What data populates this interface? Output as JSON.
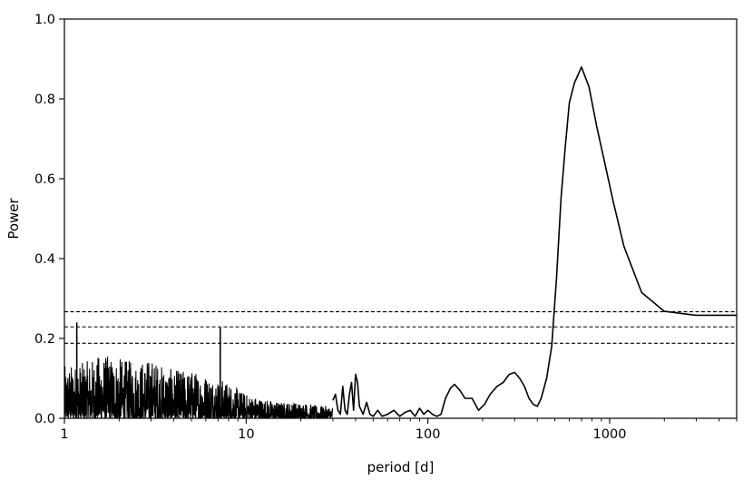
{
  "chart_data": {
    "type": "line",
    "title": "",
    "xlabel": "period [d]",
    "ylabel": "Power",
    "xscale": "log",
    "xlim": [
      1,
      5000
    ],
    "ylim": [
      0.0,
      1.0
    ],
    "x_ticks": [
      {
        "value": 1,
        "label": "1"
      },
      {
        "value": 10,
        "label": "10"
      },
      {
        "value": 100,
        "label": "100"
      },
      {
        "value": 1000,
        "label": "1000"
      }
    ],
    "y_ticks": [
      {
        "value": 0.0,
        "label": "0.0"
      },
      {
        "value": 0.2,
        "label": "0.2"
      },
      {
        "value": 0.4,
        "label": "0.4"
      },
      {
        "value": 0.6,
        "label": "0.6"
      },
      {
        "value": 0.8,
        "label": "0.8"
      },
      {
        "value": 1.0,
        "label": "1.0"
      }
    ],
    "grid": false,
    "legend": "none",
    "line_color": "#000000",
    "threshold_lines": [
      0.267,
      0.229,
      0.188
    ],
    "spikes": [
      {
        "x": 1.17,
        "y": 0.24
      },
      {
        "x": 7.2,
        "y": 0.227
      }
    ],
    "noise_region": {
      "x_range": [
        1.0,
        30.0
      ],
      "envelope": [
        [
          1.0,
          0.13
        ],
        [
          1.3,
          0.14
        ],
        [
          1.6,
          0.16
        ],
        [
          2.0,
          0.15
        ],
        [
          2.5,
          0.14
        ],
        [
          3.0,
          0.15
        ],
        [
          3.5,
          0.13
        ],
        [
          4.0,
          0.12
        ],
        [
          5.0,
          0.12
        ],
        [
          6.0,
          0.11
        ],
        [
          7.0,
          0.1
        ],
        [
          8.0,
          0.09
        ],
        [
          10.0,
          0.06
        ],
        [
          12.0,
          0.05
        ],
        [
          15.0,
          0.04
        ],
        [
          20.0,
          0.04
        ],
        [
          25.0,
          0.03
        ],
        [
          30.0,
          0.03
        ]
      ]
    },
    "series": [
      {
        "x": [
          30,
          31,
          32,
          33,
          34,
          35,
          36,
          37,
          38,
          39,
          40,
          41,
          42,
          44,
          46,
          48,
          50,
          53,
          56,
          60,
          65,
          70,
          75,
          80,
          85,
          90,
          95,
          100,
          106,
          112,
          118,
          125,
          133,
          140,
          150,
          160,
          175,
          190,
          205,
          220,
          240,
          260,
          280,
          300,
          320,
          340,
          360,
          380,
          400,
          420,
          450,
          480,
          510,
          540,
          570,
          600,
          640,
          700,
          770,
          850,
          950,
          1050,
          1200,
          1500,
          2000,
          3000,
          5000
        ],
        "y": [
          0.045,
          0.06,
          0.02,
          0.01,
          0.08,
          0.02,
          0.01,
          0.06,
          0.09,
          0.02,
          0.11,
          0.09,
          0.03,
          0.01,
          0.04,
          0.01,
          0.005,
          0.02,
          0.005,
          0.01,
          0.02,
          0.005,
          0.015,
          0.02,
          0.005,
          0.025,
          0.01,
          0.02,
          0.01,
          0.005,
          0.01,
          0.05,
          0.075,
          0.085,
          0.07,
          0.05,
          0.05,
          0.02,
          0.035,
          0.06,
          0.08,
          0.09,
          0.11,
          0.115,
          0.1,
          0.08,
          0.05,
          0.035,
          0.03,
          0.05,
          0.1,
          0.18,
          0.35,
          0.55,
          0.68,
          0.79,
          0.84,
          0.88,
          0.83,
          0.73,
          0.63,
          0.54,
          0.43,
          0.315,
          0.268,
          0.258,
          0.258
        ]
      }
    ]
  }
}
